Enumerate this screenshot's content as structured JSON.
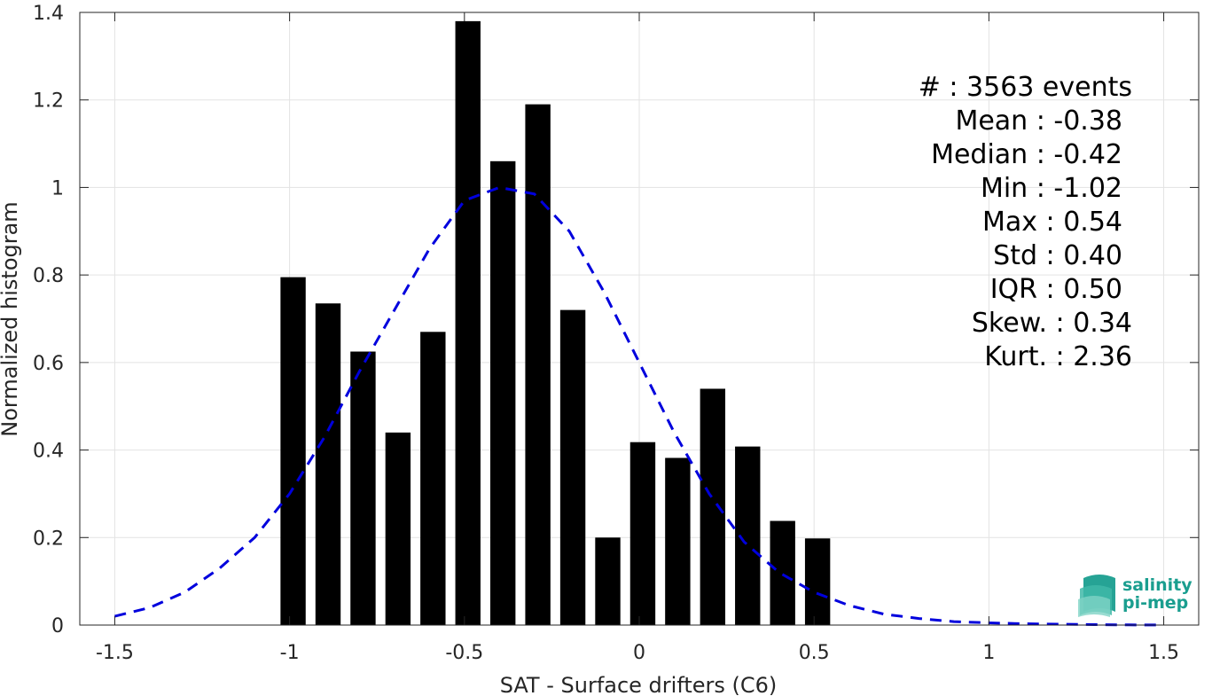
{
  "chart_data": {
    "type": "bar",
    "xlabel": "SAT - Surface drifters (C6)",
    "ylabel": "Normalized histogram",
    "xlim": [
      -1.6,
      1.6
    ],
    "ylim": [
      0,
      1.4
    ],
    "xticks": [
      -1.5,
      -1,
      -0.5,
      0,
      0.5,
      1,
      1.5
    ],
    "xtick_labels": [
      "-1.5",
      "-1",
      "-0.5",
      "0",
      "0.5",
      "1",
      "1.5"
    ],
    "yticks": [
      0,
      0.2,
      0.4,
      0.6,
      0.8,
      1,
      1.2,
      1.4
    ],
    "ytick_labels": [
      "0",
      "0.2",
      "0.4",
      "0.6",
      "0.8",
      "1",
      "1.2",
      "1.4"
    ],
    "grid": true,
    "bar_color": "#000000",
    "bar_width": 0.072,
    "bars": {
      "x": [
        -0.99,
        -0.89,
        -0.79,
        -0.69,
        -0.59,
        -0.49,
        -0.39,
        -0.29,
        -0.19,
        -0.09,
        0.01,
        0.11,
        0.21,
        0.31,
        0.41,
        0.51
      ],
      "values": [
        0.795,
        0.735,
        0.625,
        0.44,
        0.67,
        1.38,
        1.06,
        1.19,
        0.72,
        0.2,
        0.418,
        0.382,
        0.54,
        0.408,
        0.238,
        0.198
      ]
    },
    "fit_curve": {
      "style": "dashed",
      "color": "#0000dd",
      "x": [
        -1.5,
        -1.4,
        -1.3,
        -1.2,
        -1.1,
        -1.0,
        -0.9,
        -0.8,
        -0.7,
        -0.6,
        -0.5,
        -0.4,
        -0.3,
        -0.2,
        -0.1,
        0.0,
        0.1,
        0.2,
        0.3,
        0.4,
        0.5,
        0.6,
        0.7,
        0.8,
        0.9,
        1.0,
        1.1,
        1.2,
        1.3,
        1.4,
        1.5
      ],
      "y": [
        0.02,
        0.04,
        0.075,
        0.13,
        0.2,
        0.3,
        0.43,
        0.58,
        0.72,
        0.86,
        0.97,
        1.0,
        0.985,
        0.9,
        0.76,
        0.6,
        0.44,
        0.3,
        0.19,
        0.12,
        0.075,
        0.045,
        0.025,
        0.015,
        0.008,
        0.005,
        0.003,
        0.002,
        0.001,
        0.0005,
        0.0002
      ]
    }
  },
  "stats": [
    {
      "label": "#  : 3563 events"
    },
    {
      "label": "Mean : -0.38"
    },
    {
      "label": "Median : -0.42"
    },
    {
      "label": "Min : -1.02"
    },
    {
      "label": "Max : 0.54"
    },
    {
      "label": "Std : 0.40"
    },
    {
      "label": "IQR : 0.50"
    },
    {
      "label": "Skew. : 0.34"
    },
    {
      "label": "Kurt. : 2.36"
    }
  ],
  "logo": {
    "line1": "salinity",
    "line2": "pi-mep",
    "color": "#1a9e8f"
  }
}
